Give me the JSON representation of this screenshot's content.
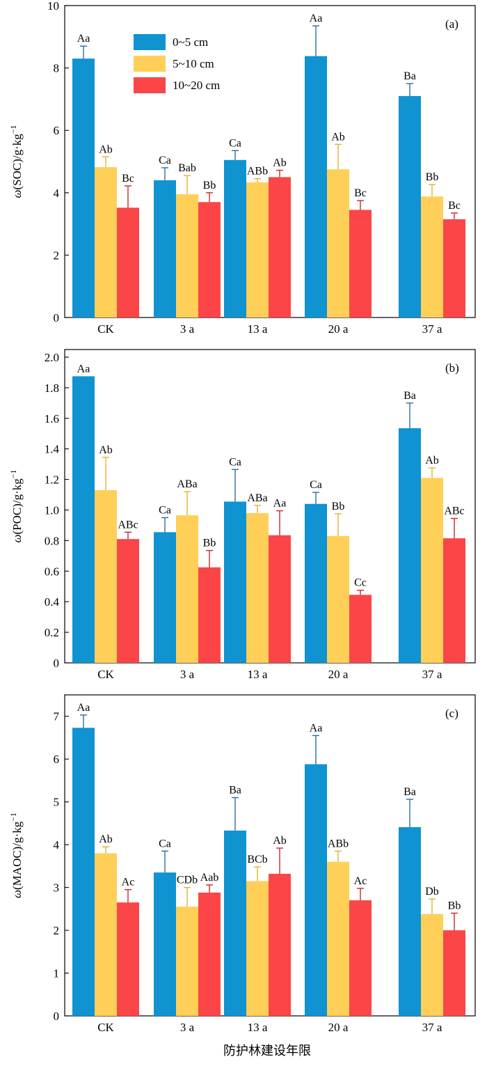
{
  "figure": {
    "xlabel": "防护林建设年限"
  },
  "colors": {
    "0-5": "#0f93d1",
    "5-10": "#ffcf58",
    "10-20": "#fb4547",
    "errorbar": {
      "0-5": "#2c6e9b",
      "5-10": "#e2b430",
      "10-20": "#c9282b"
    }
  },
  "legend": [
    "0~5 cm",
    "5~10 cm",
    "10~20 cm"
  ],
  "chart_data": [
    {
      "type": "bar",
      "panel": "(a)",
      "ylabel_main": "ω(SOC)/g·kg",
      "ylabel_sup": "−1",
      "categories": [
        "CK",
        "3 a",
        "13 a",
        "20 a",
        "37 a"
      ],
      "ylim": [
        0,
        10
      ],
      "yticks": [
        0,
        2,
        4,
        6,
        8,
        10
      ],
      "ytick_labels": [
        "0",
        "2",
        "4",
        "6",
        "8",
        "10"
      ],
      "legend_position": "top-left",
      "series": [
        {
          "name": "0~5 cm",
          "values": [
            8.3,
            4.4,
            5.05,
            8.38,
            7.1
          ],
          "errors": [
            0.4,
            0.4,
            0.3,
            0.97,
            0.4
          ],
          "labels": [
            "Aa",
            "Ca",
            "Ca",
            "Aa",
            "Ba"
          ]
        },
        {
          "name": "5~10 cm",
          "values": [
            4.82,
            3.95,
            4.33,
            4.75,
            3.88
          ],
          "errors": [
            0.33,
            0.6,
            0.12,
            0.8,
            0.38
          ],
          "labels": [
            "Ab",
            "Bab",
            "ABb",
            "Ab",
            "Bb"
          ]
        },
        {
          "name": "10~20 cm",
          "values": [
            3.52,
            3.7,
            4.5,
            3.45,
            3.15
          ],
          "errors": [
            0.7,
            0.3,
            0.22,
            0.3,
            0.2
          ],
          "labels": [
            "Bc",
            "Bb",
            "Ab",
            "Bc",
            "Bc"
          ]
        }
      ]
    },
    {
      "type": "bar",
      "panel": "(b)",
      "ylabel_main": "ω(POC)/g·kg",
      "ylabel_sup": "−1",
      "categories": [
        "CK",
        "3 a",
        "13 a",
        "20 a",
        "37 a"
      ],
      "ylim": [
        0,
        2.05
      ],
      "yticks": [
        0,
        0.2,
        0.4,
        0.6,
        0.8,
        1.0,
        1.2,
        1.4,
        1.6,
        1.8,
        2.0
      ],
      "ytick_labels": [
        "0",
        "0.2",
        "0.4",
        "0.6",
        "0.8",
        "1.0",
        "1.2",
        "1.4",
        "1.6",
        "1.8",
        "2.0"
      ],
      "series": [
        {
          "name": "0~5 cm",
          "values": [
            1.875,
            0.855,
            1.055,
            1.04,
            1.535
          ],
          "errors": [
            0,
            0.095,
            0.21,
            0.075,
            0.165
          ],
          "labels": [
            "Aa",
            "Ca",
            "Ca",
            "Ca",
            "Ba"
          ]
        },
        {
          "name": "5~10 cm",
          "values": [
            1.13,
            0.965,
            0.98,
            0.83,
            1.21
          ],
          "errors": [
            0.215,
            0.155,
            0.05,
            0.145,
            0.065
          ],
          "labels": [
            "Ab",
            "ABa",
            "ABa",
            "Bb",
            "Ab"
          ]
        },
        {
          "name": "10~20 cm",
          "values": [
            0.81,
            0.625,
            0.835,
            0.445,
            0.815
          ],
          "errors": [
            0.045,
            0.11,
            0.16,
            0.03,
            0.13
          ],
          "labels": [
            "ABc",
            "Bb",
            "Aa",
            "Cc",
            "ABc"
          ]
        }
      ]
    },
    {
      "type": "bar",
      "panel": "(c)",
      "ylabel_main": "ω(MAOC)/g·kg",
      "ylabel_sup": "−1",
      "categories": [
        "CK",
        "3 a",
        "13 a",
        "20 a",
        "37 a"
      ],
      "ylim": [
        0,
        7.5
      ],
      "yticks": [
        0,
        1,
        2,
        3,
        4,
        5,
        6,
        7
      ],
      "ytick_labels": [
        "0",
        "1",
        "2",
        "3",
        "4",
        "5",
        "6",
        "7"
      ],
      "series": [
        {
          "name": "0~5 cm",
          "values": [
            6.73,
            3.35,
            4.33,
            5.88,
            4.41
          ],
          "errors": [
            0.3,
            0.5,
            0.77,
            0.67,
            0.65
          ],
          "labels": [
            "Aa",
            "Ca",
            "Ba",
            "Aa",
            "Ba"
          ]
        },
        {
          "name": "5~10 cm",
          "values": [
            3.8,
            2.55,
            3.15,
            3.6,
            2.38
          ],
          "errors": [
            0.15,
            0.45,
            0.33,
            0.25,
            0.35
          ],
          "labels": [
            "Ab",
            "CDb",
            "BCb",
            "ABb",
            "Db"
          ]
        },
        {
          "name": "10~20 cm",
          "values": [
            2.65,
            2.88,
            3.32,
            2.7,
            2.0
          ],
          "errors": [
            0.3,
            0.18,
            0.6,
            0.28,
            0.4
          ],
          "labels": [
            "Ac",
            "Aab",
            "Ab",
            "Ac",
            "Bb"
          ]
        }
      ]
    }
  ]
}
